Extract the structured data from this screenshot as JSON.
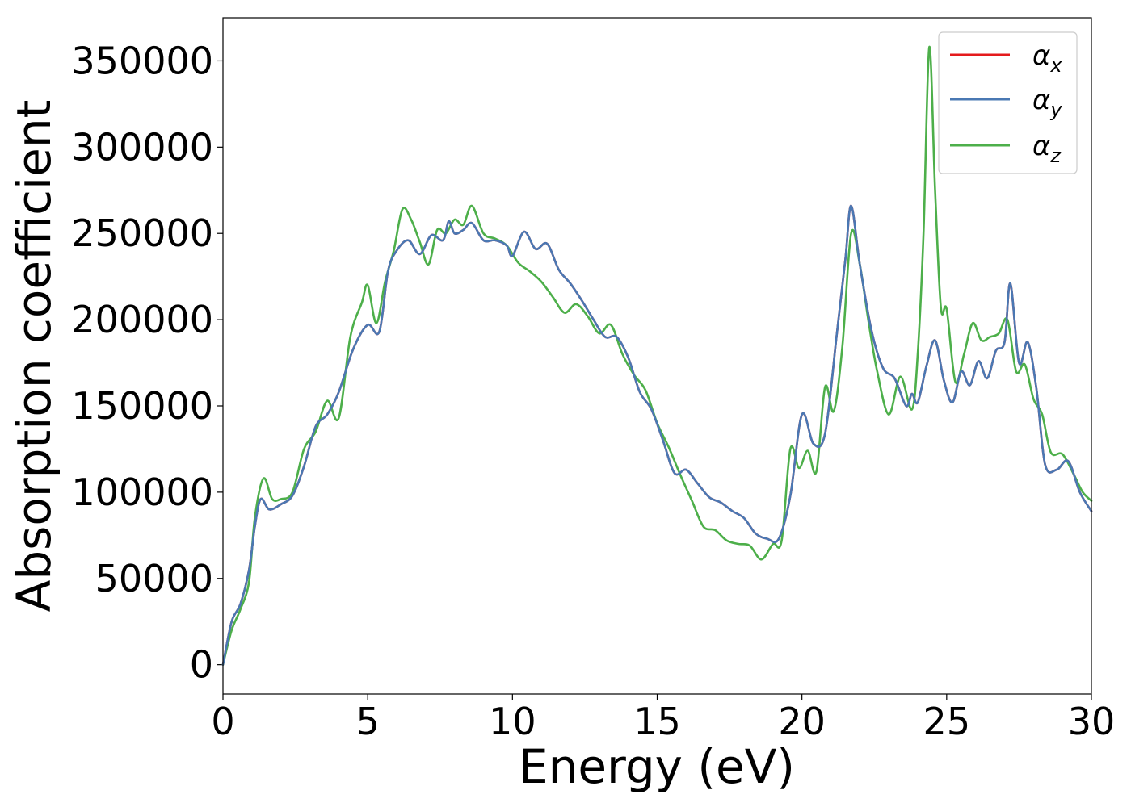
{
  "chart_data": {
    "type": "line",
    "xlabel": "Energy (eV)",
    "ylabel": "Absorption coefficient",
    "xlim": [
      0,
      30
    ],
    "ylim": [
      -17000,
      375000
    ],
    "xticks": [
      0,
      5,
      10,
      15,
      20,
      25,
      30
    ],
    "yticks": [
      0,
      50000,
      100000,
      150000,
      200000,
      250000,
      300000,
      350000
    ],
    "grid": false,
    "legend_position": "top-right",
    "series": [
      {
        "name": "α",
        "subscript": "x",
        "color": "#e41a1c",
        "x": [
          0,
          0.3,
          0.6,
          0.9,
          1.1,
          1.3,
          1.6,
          2.0,
          2.4,
          2.8,
          3.2,
          3.6,
          4.0,
          4.5,
          5.0,
          5.4,
          5.7,
          6.0,
          6.4,
          6.8,
          7.2,
          7.6,
          7.8,
          8.0,
          8.3,
          8.6,
          9.0,
          9.4,
          9.8,
          10.0,
          10.4,
          10.8,
          11.2,
          11.6,
          12.0,
          12.4,
          12.8,
          13.2,
          13.6,
          14.0,
          14.4,
          14.8,
          15.2,
          15.6,
          16.0,
          16.4,
          16.8,
          17.2,
          17.6,
          18.0,
          18.4,
          18.8,
          19.2,
          19.6,
          20.0,
          20.4,
          20.8,
          21.2,
          21.5,
          21.7,
          22.0,
          22.4,
          22.8,
          23.2,
          23.6,
          23.8,
          24.0,
          24.3,
          24.6,
          24.9,
          25.2,
          25.5,
          25.8,
          26.1,
          26.4,
          26.7,
          27.0,
          27.2,
          27.5,
          27.8,
          28.1,
          28.4,
          28.8,
          29.2,
          29.6,
          30.0
        ],
        "values": [
          0,
          25000,
          35000,
          55000,
          80000,
          96000,
          90000,
          93000,
          98000,
          115000,
          138000,
          145000,
          158000,
          183000,
          197000,
          193000,
          228000,
          240000,
          246000,
          238000,
          249000,
          246000,
          257000,
          250000,
          252000,
          256000,
          246000,
          246000,
          243000,
          237000,
          251000,
          241000,
          244000,
          229000,
          221000,
          211000,
          200000,
          190000,
          190000,
          178000,
          158000,
          148000,
          130000,
          111000,
          113000,
          105000,
          97000,
          94000,
          89000,
          85000,
          76000,
          73000,
          73000,
          98000,
          145000,
          128000,
          134000,
          191000,
          235000,
          266000,
          232000,
          194000,
          172000,
          166000,
          150000,
          157000,
          152000,
          173000,
          188000,
          165000,
          152000,
          170000,
          162000,
          176000,
          166000,
          182000,
          187000,
          221000,
          175000,
          187000,
          160000,
          116000,
          113000,
          118000,
          100000,
          89000
        ]
      },
      {
        "name": "α",
        "subscript": "y",
        "color": "#4a78b3",
        "x": [
          0,
          0.3,
          0.6,
          0.9,
          1.1,
          1.3,
          1.6,
          2.0,
          2.4,
          2.8,
          3.2,
          3.6,
          4.0,
          4.5,
          5.0,
          5.4,
          5.7,
          6.0,
          6.4,
          6.8,
          7.2,
          7.6,
          7.8,
          8.0,
          8.3,
          8.6,
          9.0,
          9.4,
          9.8,
          10.0,
          10.4,
          10.8,
          11.2,
          11.6,
          12.0,
          12.4,
          12.8,
          13.2,
          13.6,
          14.0,
          14.4,
          14.8,
          15.2,
          15.6,
          16.0,
          16.4,
          16.8,
          17.2,
          17.6,
          18.0,
          18.4,
          18.8,
          19.2,
          19.6,
          20.0,
          20.4,
          20.8,
          21.2,
          21.5,
          21.7,
          22.0,
          22.4,
          22.8,
          23.2,
          23.6,
          23.8,
          24.0,
          24.3,
          24.6,
          24.9,
          25.2,
          25.5,
          25.8,
          26.1,
          26.4,
          26.7,
          27.0,
          27.2,
          27.5,
          27.8,
          28.1,
          28.4,
          28.8,
          29.2,
          29.6,
          30.0
        ],
        "values": [
          0,
          25000,
          35000,
          55000,
          80000,
          96000,
          90000,
          93000,
          98000,
          115000,
          138000,
          145000,
          158000,
          183000,
          197000,
          193000,
          228000,
          240000,
          246000,
          238000,
          249000,
          246000,
          257000,
          250000,
          252000,
          256000,
          246000,
          246000,
          243000,
          237000,
          251000,
          241000,
          244000,
          229000,
          221000,
          211000,
          200000,
          190000,
          190000,
          178000,
          158000,
          148000,
          130000,
          111000,
          113000,
          105000,
          97000,
          94000,
          89000,
          85000,
          76000,
          73000,
          73000,
          98000,
          145000,
          128000,
          134000,
          191000,
          235000,
          266000,
          232000,
          194000,
          172000,
          166000,
          150000,
          157000,
          152000,
          173000,
          188000,
          165000,
          152000,
          170000,
          162000,
          176000,
          166000,
          182000,
          187000,
          221000,
          175000,
          187000,
          160000,
          116000,
          113000,
          118000,
          100000,
          89000
        ]
      },
      {
        "name": "α",
        "subscript": "z",
        "color": "#4daf4a",
        "x": [
          0,
          0.3,
          0.6,
          0.9,
          1.1,
          1.4,
          1.7,
          2.0,
          2.4,
          2.8,
          3.2,
          3.6,
          4.0,
          4.4,
          4.8,
          5.0,
          5.3,
          5.6,
          5.9,
          6.2,
          6.5,
          6.8,
          7.1,
          7.4,
          7.7,
          8.0,
          8.3,
          8.6,
          9.0,
          9.4,
          9.8,
          10.2,
          10.6,
          11.0,
          11.4,
          11.8,
          12.2,
          12.6,
          13.0,
          13.4,
          13.8,
          14.2,
          14.6,
          15.0,
          15.4,
          15.8,
          16.2,
          16.6,
          17.0,
          17.4,
          17.8,
          18.2,
          18.6,
          19.0,
          19.3,
          19.6,
          19.9,
          20.2,
          20.5,
          20.8,
          21.1,
          21.4,
          21.7,
          22.0,
          22.3,
          22.6,
          23.0,
          23.4,
          23.8,
          24.0,
          24.2,
          24.4,
          24.6,
          24.8,
          25.0,
          25.3,
          25.6,
          25.9,
          26.2,
          26.5,
          26.8,
          27.1,
          27.4,
          27.7,
          28.0,
          28.3,
          28.6,
          29.0,
          29.4,
          29.7,
          30.0
        ],
        "values": [
          0,
          20000,
          32000,
          48000,
          85000,
          108000,
          96000,
          96000,
          100000,
          125000,
          135000,
          153000,
          143000,
          190000,
          210000,
          220000,
          198000,
          222000,
          240000,
          264000,
          258000,
          245000,
          232000,
          252000,
          250000,
          258000,
          255000,
          266000,
          250000,
          247000,
          243000,
          233000,
          228000,
          222000,
          213000,
          204000,
          209000,
          202000,
          192000,
          197000,
          180000,
          168000,
          159000,
          140000,
          126000,
          110000,
          95000,
          80000,
          78000,
          72000,
          70000,
          69000,
          61000,
          70000,
          72000,
          125000,
          114000,
          124000,
          112000,
          161000,
          147000,
          185000,
          250000,
          232000,
          199000,
          170000,
          145000,
          167000,
          148000,
          180000,
          250000,
          358000,
          275000,
          207000,
          206000,
          164000,
          180000,
          198000,
          188000,
          190000,
          192000,
          200000,
          170000,
          174000,
          154000,
          145000,
          123000,
          122000,
          110000,
          100000,
          95000
        ]
      }
    ]
  }
}
